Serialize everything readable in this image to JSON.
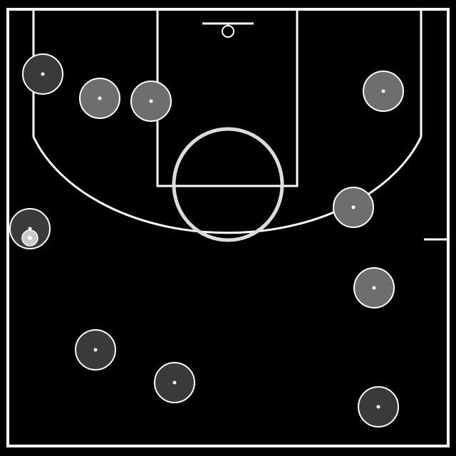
{
  "colors": {
    "background": "#000000",
    "line": "#ffffff",
    "circle_line": "#dcdcdc",
    "ball": "#c8c8c8"
  },
  "players": [
    {
      "fill": "#3a3a3a",
      "stroke": "#ffffff",
      "ring": "#ffffff"
    },
    {
      "fill": "#6e6e6e",
      "stroke": "#ffffff",
      "ring": "#ffffff"
    },
    {
      "fill": "#6e6e6e",
      "stroke": "#ffffff",
      "ring": "#ffffff"
    },
    {
      "fill": "#6e6e6e",
      "stroke": "#ffffff",
      "ring": "#ffffff"
    },
    {
      "fill": "#3a3a3a",
      "stroke": "#ffffff",
      "ring": "#ffffff",
      "has_ball": true
    },
    {
      "fill": "#6e6e6e",
      "stroke": "#ffffff",
      "ring": "#ffffff"
    },
    {
      "fill": "#6e6e6e",
      "stroke": "#ffffff",
      "ring": "#ffffff"
    },
    {
      "fill": "#3a3a3a",
      "stroke": "#ffffff",
      "ring": "#ffffff"
    },
    {
      "fill": "#3a3a3a",
      "stroke": "#ffffff",
      "ring": "#ffffff"
    },
    {
      "fill": "#3a3a3a",
      "stroke": "#ffffff",
      "ring": "#ffffff"
    }
  ]
}
